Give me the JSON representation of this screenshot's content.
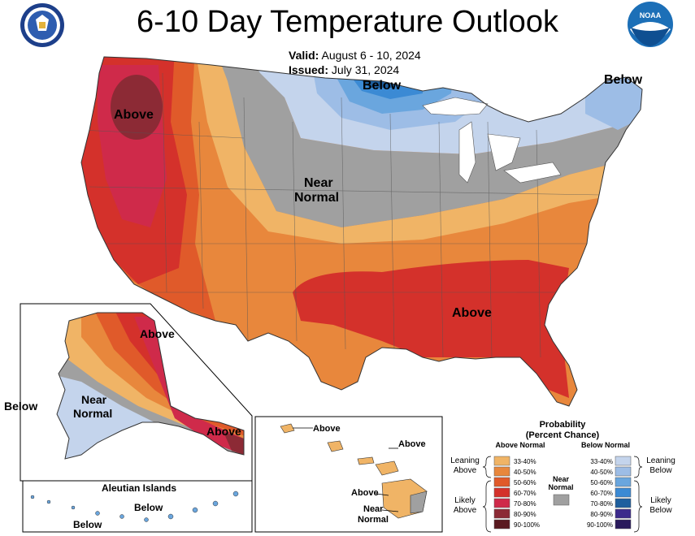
{
  "header": {
    "title": "6-10 Day Temperature Outlook",
    "valid_label": "Valid:",
    "valid_value": "August 6 - 10, 2024",
    "issued_label": "Issued:",
    "issued_value": "July 31, 2024"
  },
  "map_labels": {
    "conus_above_west": "Above",
    "conus_below_north": "Below",
    "conus_below_ne": "Below",
    "conus_near_line1": "Near",
    "conus_near_line2": "Normal",
    "conus_above_se": "Above",
    "ak_above": "Above",
    "ak_near_line1": "Near",
    "ak_near_line2": "Normal",
    "ak_below": "Below",
    "ak_panhandle_above": "Above",
    "aleutian_title": "Aleutian Islands",
    "aleutian_below_1": "Below",
    "aleutian_below_2": "Below",
    "hi_above_1": "Above",
    "hi_above_2": "Above",
    "hi_above_3": "Above",
    "hi_near_line1": "Near",
    "hi_near_line2": "Normal"
  },
  "legend": {
    "title_line1": "Probability",
    "title_line2": "(Percent Chance)",
    "above_header": "Above Normal",
    "below_header": "Below Normal",
    "near_line1": "Near",
    "near_line2": "Normal",
    "leaning_above_1": "Leaning",
    "leaning_above_2": "Above",
    "likely_above_1": "Likely",
    "likely_above_2": "Above",
    "leaning_below_1": "Leaning",
    "leaning_below_2": "Below",
    "likely_below_1": "Likely",
    "likely_below_2": "Below",
    "above_bins": [
      {
        "label": "33-40%",
        "color": "#f0b466"
      },
      {
        "label": "40-50%",
        "color": "#e8873c"
      },
      {
        "label": "50-60%",
        "color": "#e05a2a"
      },
      {
        "label": "60-70%",
        "color": "#d4312b"
      },
      {
        "label": "70-80%",
        "color": "#cf2a4a"
      },
      {
        "label": "80-90%",
        "color": "#8c2a35"
      },
      {
        "label": "90-100%",
        "color": "#5a1a20"
      }
    ],
    "below_bins": [
      {
        "label": "33-40%",
        "color": "#c4d4ec"
      },
      {
        "label": "40-50%",
        "color": "#9dbde6"
      },
      {
        "label": "50-60%",
        "color": "#6aa6de"
      },
      {
        "label": "60-70%",
        "color": "#3b8ad4"
      },
      {
        "label": "70-80%",
        "color": "#1e5f9e"
      },
      {
        "label": "80-90%",
        "color": "#3c2a8c"
      },
      {
        "label": "90-100%",
        "color": "#2a1a5c"
      }
    ],
    "near_color": "#a0a0a0"
  },
  "logos": {
    "left_seal": "department-of-commerce-seal",
    "right_seal": "noaa-logo",
    "noaa_text": "NOAA"
  }
}
